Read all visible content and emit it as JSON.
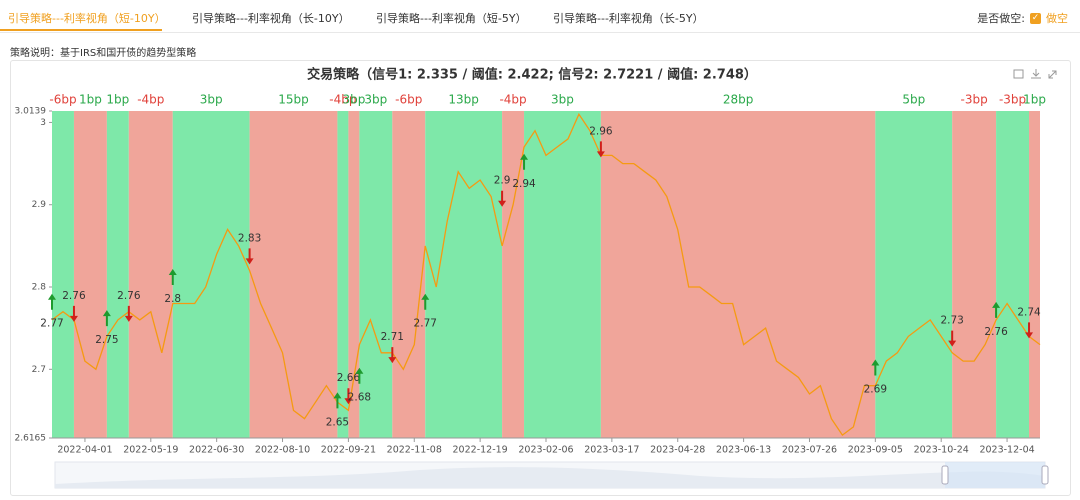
{
  "tabs": [
    "引导策略---利率视角（短-10Y）",
    "引导策略---利率视角（长-10Y）",
    "引导策略---利率视角（短-5Y）",
    "引导策略---利率视角（长-5Y）"
  ],
  "short_toggle": {
    "label": "是否做空:",
    "option": "做空"
  },
  "description": "策略说明：基于IRS和国开债的趋势型策略",
  "chart_data": {
    "type": "line",
    "title": "交易策略（信号1: 2.335 / 阈值: 2.422; 信号2: 2.7221 / 阈值: 2.748）",
    "categories": [
      null,
      null,
      null,
      "2022-04-01",
      null,
      null,
      null,
      null,
      null,
      "2022-05-19",
      null,
      null,
      null,
      null,
      null,
      "2022-06-30",
      null,
      null,
      null,
      null,
      null,
      "2022-08-10",
      null,
      null,
      null,
      null,
      null,
      "2022-09-21",
      null,
      null,
      null,
      null,
      null,
      "2022-11-08",
      null,
      null,
      null,
      null,
      null,
      "2022-12-19",
      null,
      null,
      null,
      null,
      null,
      "2023-02-06",
      null,
      null,
      null,
      null,
      null,
      "2023-03-17",
      null,
      null,
      null,
      null,
      null,
      "2023-04-28",
      null,
      null,
      null,
      null,
      null,
      "2023-06-13",
      null,
      null,
      null,
      null,
      null,
      "2023-07-26",
      null,
      null,
      null,
      null,
      null,
      "2023-09-05",
      null,
      null,
      null,
      null,
      null,
      "2023-10-24",
      null,
      null,
      null,
      null,
      null,
      "2023-12-04",
      null,
      null,
      null
    ],
    "values": [
      2.76,
      2.77,
      2.76,
      2.71,
      2.7,
      2.74,
      2.76,
      2.77,
      2.76,
      2.77,
      2.72,
      2.78,
      2.78,
      2.78,
      2.8,
      2.84,
      2.87,
      2.85,
      2.82,
      2.78,
      2.75,
      2.72,
      2.65,
      2.64,
      2.66,
      2.68,
      2.66,
      2.65,
      2.73,
      2.76,
      2.72,
      2.72,
      2.7,
      2.73,
      2.85,
      2.8,
      2.88,
      2.94,
      2.92,
      2.93,
      2.91,
      2.85,
      2.9,
      2.97,
      2.99,
      2.96,
      2.97,
      2.98,
      3.01,
      2.99,
      2.96,
      2.96,
      2.95,
      2.95,
      2.94,
      2.93,
      2.91,
      2.87,
      2.8,
      2.8,
      2.79,
      2.78,
      2.78,
      2.73,
      2.74,
      2.75,
      2.71,
      2.7,
      2.69,
      2.67,
      2.68,
      2.64,
      2.62,
      2.63,
      2.68,
      2.68,
      2.71,
      2.72,
      2.74,
      2.75,
      2.76,
      2.74,
      2.72,
      2.71,
      2.71,
      2.73,
      2.76,
      2.78,
      2.76,
      2.74,
      2.73
    ],
    "color": "#f59a12",
    "ylim": [
      2.6165,
      3.0139
    ],
    "yticks": [
      2.6165,
      2.7,
      2.8,
      2.9,
      3,
      3.0139
    ],
    "bands": [
      {
        "start": 0,
        "end": 2,
        "color": "#7ee8a9",
        "value": -6,
        "label": "-6bp"
      },
      {
        "start": 2,
        "end": 5,
        "color": "#f0a59a",
        "value": 1,
        "label": "1bp"
      },
      {
        "start": 5,
        "end": 7,
        "color": "#7ee8a9",
        "value": 1,
        "label": "1bp"
      },
      {
        "start": 7,
        "end": 11,
        "color": "#f0a59a",
        "value": -4,
        "label": "-4bp"
      },
      {
        "start": 11,
        "end": 18,
        "color": "#7ee8a9",
        "value": 3,
        "label": "3bp"
      },
      {
        "start": 18,
        "end": 26,
        "color": "#f0a59a",
        "value": 15,
        "label": "15bp"
      },
      {
        "start": 26,
        "end": 27,
        "color": "#7ee8a9",
        "value": -4,
        "label": "-4bp"
      },
      {
        "start": 27,
        "end": 28,
        "color": "#f0a59a",
        "value": 3,
        "label": "3bp"
      },
      {
        "start": 28,
        "end": 31,
        "color": "#7ee8a9",
        "value": 3,
        "label": "3bp"
      },
      {
        "start": 31,
        "end": 34,
        "color": "#f0a59a",
        "value": -6,
        "label": "-6bp"
      },
      {
        "start": 34,
        "end": 41,
        "color": "#7ee8a9",
        "value": 13,
        "label": "13bp"
      },
      {
        "start": 41,
        "end": 43,
        "color": "#f0a59a",
        "value": -4,
        "label": "-4bp"
      },
      {
        "start": 43,
        "end": 50,
        "color": "#7ee8a9",
        "value": 3,
        "label": "3bp"
      },
      {
        "start": 50,
        "end": 75,
        "color": "#f0a59a",
        "value": 28,
        "label": "28bp"
      },
      {
        "start": 75,
        "end": 82,
        "color": "#7ee8a9",
        "value": 5,
        "label": "5bp"
      },
      {
        "start": 82,
        "end": 86,
        "color": "#f0a59a",
        "value": -3,
        "label": "-3bp"
      },
      {
        "start": 86,
        "end": 89,
        "color": "#7ee8a9",
        "value": -3,
        "label": "-3bp"
      },
      {
        "start": 89,
        "end": 90,
        "color": "#f0a59a",
        "value": 1,
        "label": "1bp"
      }
    ],
    "signals": [
      {
        "index": 0,
        "value": 2.77,
        "direction": "up"
      },
      {
        "index": 2,
        "value": 2.76,
        "direction": "down"
      },
      {
        "index": 5,
        "value": 2.75,
        "direction": "up"
      },
      {
        "index": 7,
        "value": 2.76,
        "direction": "down"
      },
      {
        "index": 11,
        "value": 2.8,
        "direction": "up"
      },
      {
        "index": 18,
        "value": 2.83,
        "direction": "down"
      },
      {
        "index": 26,
        "value": 2.65,
        "direction": "up"
      },
      {
        "index": 27,
        "value": 2.66,
        "direction": "down"
      },
      {
        "index": 28,
        "value": 2.68,
        "direction": "up"
      },
      {
        "index": 31,
        "value": 2.71,
        "direction": "down"
      },
      {
        "index": 34,
        "value": 2.77,
        "direction": "up"
      },
      {
        "index": 41,
        "value": 2.9,
        "direction": "down"
      },
      {
        "index": 43,
        "value": 2.94,
        "direction": "up"
      },
      {
        "index": 50,
        "value": 2.96,
        "direction": "down"
      },
      {
        "index": 75,
        "value": 2.69,
        "direction": "up"
      },
      {
        "index": 82,
        "value": 2.73,
        "direction": "down"
      },
      {
        "index": 86,
        "value": 2.76,
        "direction": "up"
      },
      {
        "index": 89,
        "value": 2.74,
        "direction": "down"
      }
    ]
  }
}
